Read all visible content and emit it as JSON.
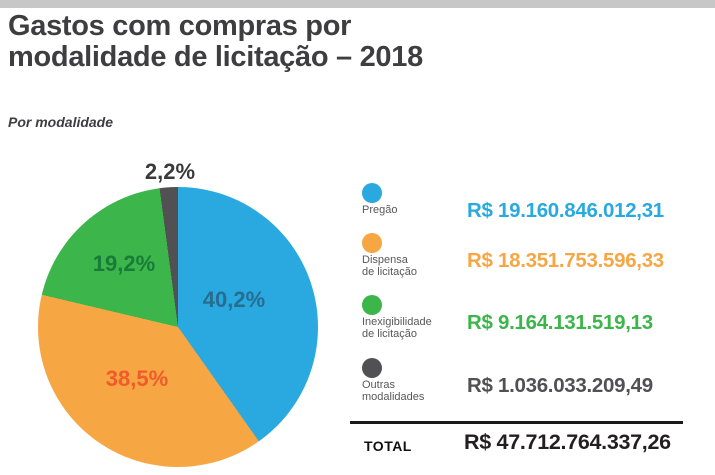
{
  "header": {
    "title": "Gastos com compras por\nmodalidade de licitação – 2018",
    "subtitle": "Por modalidade"
  },
  "chart_data": {
    "type": "pie",
    "title": "Gastos com compras por modalidade de licitação – 2018",
    "subtitle": "Por modalidade",
    "currency": "R$",
    "start_angle_deg": 0,
    "direction": "clockwise",
    "legend_position": "right",
    "slices": [
      {
        "label": "Pregão",
        "legend_line1": "Pregão",
        "legend_line2": "",
        "percent": 40.2,
        "percent_label": "40,2%",
        "value": 19160846012.31,
        "value_label": "R$ 19.160.846.012,31",
        "color": "#2AA9E0",
        "percent_label_color": "#266E90"
      },
      {
        "label": "Dispensa de licitação",
        "legend_line1": "Dispensa",
        "legend_line2": "de licitação",
        "percent": 38.5,
        "percent_label": "38,5%",
        "value": 18351753596.33,
        "value_label": "R$ 18.351.753.596,33",
        "color": "#F7A644",
        "percent_label_color": "#F15B2B"
      },
      {
        "label": "Inexigibilidade de licitação",
        "legend_line1": "Inexigibilidade",
        "legend_line2": "de licitação",
        "percent": 19.2,
        "percent_label": "19,2%",
        "value": 9164131519.13,
        "value_label": "R$ 9.164.131.519,13",
        "color": "#3CB54A",
        "percent_label_color": "#177C38"
      },
      {
        "label": "Outras modalidades",
        "legend_line1": "Outras",
        "legend_line2": "modalidades",
        "percent": 2.2,
        "percent_label": "2,2%",
        "value": 1036033209.49,
        "value_label": "R$ 1.036.033.209,49",
        "color": "#515153",
        "percent_label_color": "#3A3A3A"
      }
    ],
    "total": {
      "label": "TOTAL",
      "value": 47712764337.26,
      "value_label": "R$ 47.712.764.337,26"
    }
  }
}
